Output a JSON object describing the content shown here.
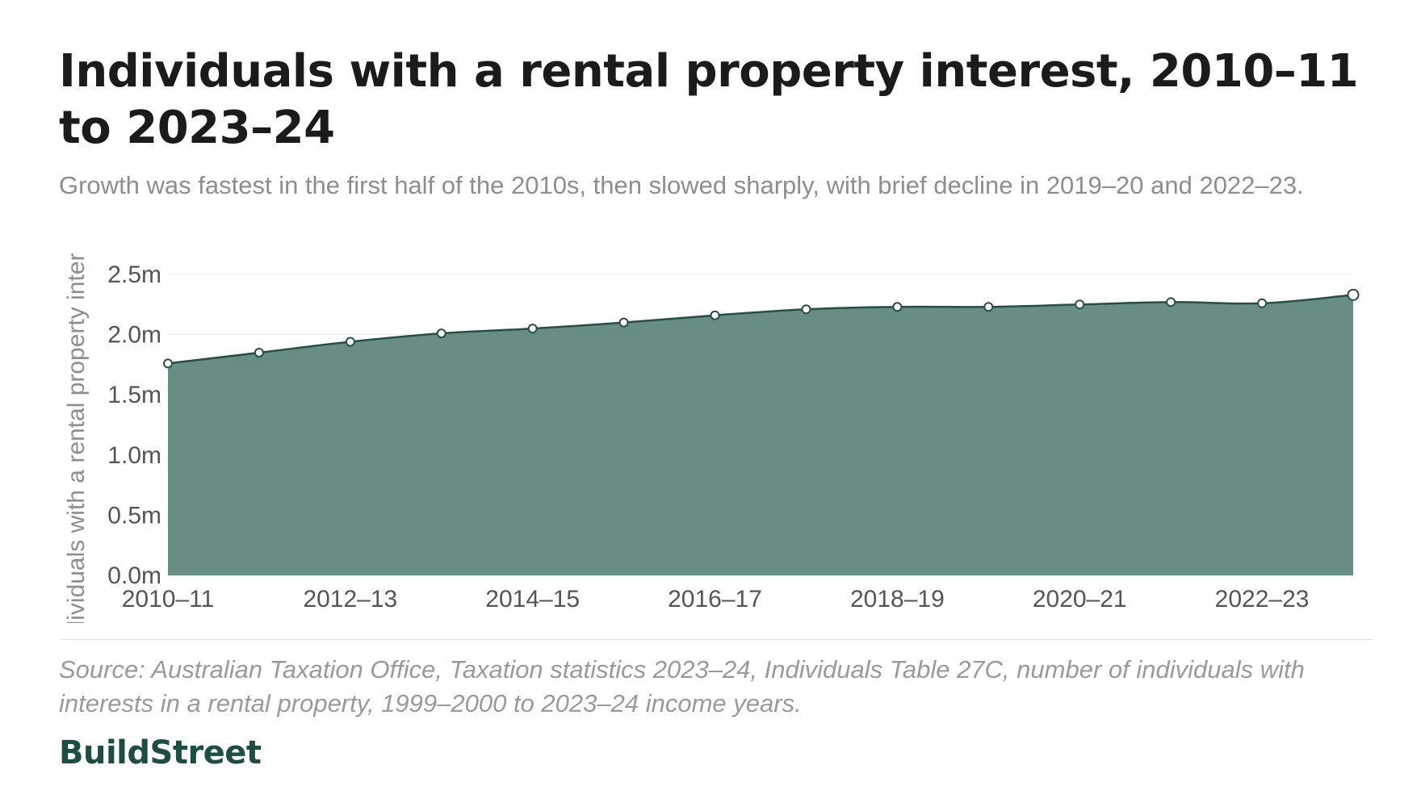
{
  "title": "Individuals with a rental property interest, 2010–11 to 2023–24",
  "subtitle": "Growth was fastest in the first half of the 2010s, then slowed sharply, with brief decline in 2019–20 and 2022–23.",
  "source": "Source: Australian Taxation Office, Taxation statistics 2023–24, Individuals Table 27C, number of individuals with interests in a rental property, 1999–2000 to 2023–24 income years.",
  "brand": "BuildStreet",
  "colors": {
    "area": "#5f877d",
    "line": "#2a4d44",
    "grid": "#ebebeb",
    "brand": "#1e4d43"
  },
  "chart_data": {
    "type": "area",
    "x": [
      "2010–11",
      "2011–12",
      "2012–13",
      "2013–14",
      "2014–15",
      "2015–16",
      "2016–17",
      "2017–18",
      "2018–19",
      "2019–20",
      "2020–21",
      "2021–22",
      "2022–23",
      "2023–24"
    ],
    "values": [
      1.76,
      1.85,
      1.94,
      2.01,
      2.05,
      2.1,
      2.16,
      2.21,
      2.23,
      2.23,
      2.25,
      2.27,
      2.26,
      2.33
    ],
    "ylabel": "Individuals with a rental property interest",
    "ylim": [
      0,
      2.5
    ],
    "yticks": [
      0,
      0.5,
      1.0,
      1.5,
      2.0,
      2.5
    ],
    "ytick_labels": [
      "0.0m",
      "0.5m",
      "1.0m",
      "1.5m",
      "2.0m",
      "2.5m"
    ],
    "xtick_labels": [
      "2010–11",
      "2012–13",
      "2014–15",
      "2016–17",
      "2018–19",
      "2020–21",
      "2022–23"
    ],
    "grid": true
  }
}
